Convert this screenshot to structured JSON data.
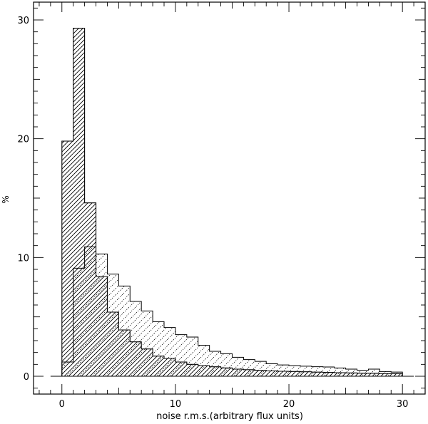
{
  "chart_data": {
    "type": "histogram",
    "title": "",
    "xlabel": "noise r.m.s.(arbitrary flux units)",
    "ylabel": "%",
    "xlim": [
      -2.5,
      32
    ],
    "ylim": [
      -1.5,
      31.5
    ],
    "xticks": [
      0,
      10,
      20,
      30
    ],
    "yticks": [
      0,
      10,
      20,
      30
    ],
    "grid": false,
    "bin_edges": [
      0,
      1,
      2,
      3,
      4,
      5,
      6,
      7,
      8,
      9,
      10,
      11,
      12,
      13,
      14,
      15,
      16,
      17,
      18,
      19,
      20,
      21,
      22,
      23,
      24,
      25,
      26,
      27,
      28,
      29,
      30
    ],
    "series": [
      {
        "style": "hatched",
        "values": [
          19.8,
          29.3,
          14.6,
          8.4,
          5.4,
          3.9,
          2.9,
          2.3,
          1.7,
          1.5,
          1.2,
          1.0,
          0.9,
          0.8,
          0.7,
          0.6,
          0.55,
          0.5,
          0.45,
          0.42,
          0.4,
          0.38,
          0.35,
          0.33,
          0.3,
          0.28,
          0.26,
          0.25,
          0.23,
          0.22
        ]
      },
      {
        "style": "dotted-hatch",
        "values": [
          1.2,
          9.1,
          10.9,
          10.3,
          8.6,
          7.6,
          6.3,
          5.5,
          4.6,
          4.1,
          3.5,
          3.3,
          2.6,
          2.1,
          1.9,
          1.6,
          1.4,
          1.25,
          1.05,
          0.95,
          0.9,
          0.85,
          0.8,
          0.78,
          0.7,
          0.6,
          0.5,
          0.6,
          0.4,
          0.35
        ]
      }
    ],
    "baseline_extends_to": [
      -1,
      31
    ]
  }
}
